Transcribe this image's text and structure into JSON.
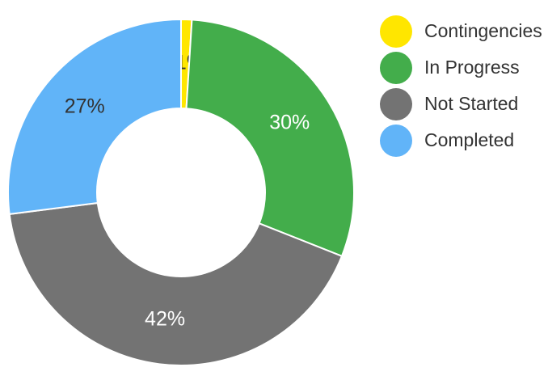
{
  "chart_data": {
    "type": "pie",
    "variant": "donut",
    "title": "",
    "legend_position": "right",
    "show_percent_labels": true,
    "slices": [
      {
        "name": "Contingencies",
        "value": 1,
        "label": "1%",
        "color": "#FFE600",
        "label_color": "#333333"
      },
      {
        "name": "In Progress",
        "value": 30,
        "label": "30%",
        "color": "#43AD4B",
        "label_color": "#FFFFFF"
      },
      {
        "name": "Not Started",
        "value": 42,
        "label": "42%",
        "color": "#737373",
        "label_color": "#FFFFFF"
      },
      {
        "name": "Completed",
        "value": 27,
        "label": "27%",
        "color": "#61B4F8",
        "label_color": "#333333"
      }
    ]
  }
}
